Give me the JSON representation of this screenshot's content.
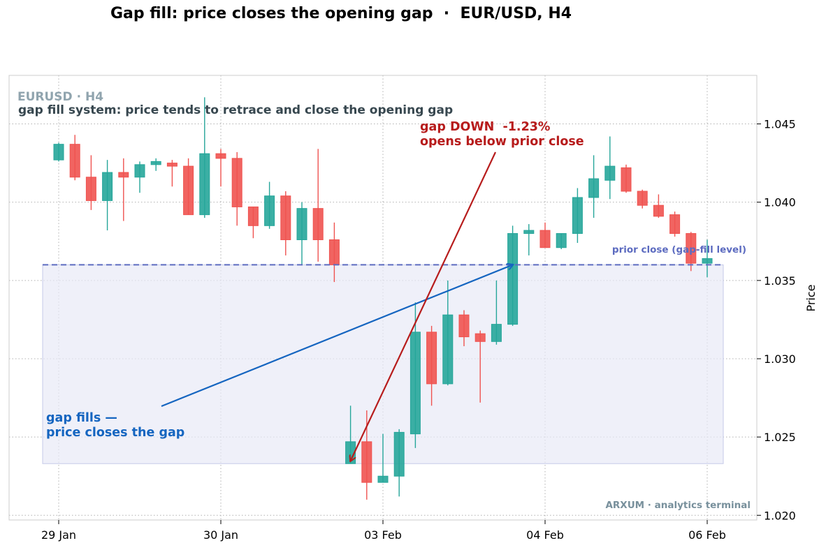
{
  "chart_data": {
    "type": "candlestick",
    "title": "Gap fill: price closes the opening gap  ·  EUR/USD, H4",
    "ylabel": "Price",
    "ylim": [
      1.0197,
      1.0481
    ],
    "yticks": [
      "1.020",
      "1.025",
      "1.030",
      "1.035",
      "1.040",
      "1.045"
    ],
    "ytick_values": [
      1.02,
      1.025,
      1.03,
      1.035,
      1.04,
      1.045
    ],
    "xticks": [
      {
        "label": "29 Jan",
        "index": 0
      },
      {
        "label": "30 Jan",
        "index": 10
      },
      {
        "label": "03 Feb",
        "index": 20
      },
      {
        "label": "04 Feb",
        "index": 30
      },
      {
        "label": "06 Feb",
        "index": 40
      }
    ],
    "grid": true,
    "colors": {
      "up": "#26a69a",
      "down": "#ef5350",
      "fill_level": "#5c6bc0",
      "gap_zone": "#e8eaf6",
      "fill_arrow": "#1565c0",
      "gap_arrow": "#b71c1c"
    },
    "candles": [
      {
        "o": 1.0427,
        "h": 1.0438,
        "l": 1.0426,
        "c": 1.0437
      },
      {
        "o": 1.0437,
        "h": 1.0443,
        "l": 1.0414,
        "c": 1.0416
      },
      {
        "o": 1.0416,
        "h": 1.043,
        "l": 1.0395,
        "c": 1.0401
      },
      {
        "o": 1.0401,
        "h": 1.0427,
        "l": 1.0382,
        "c": 1.0419
      },
      {
        "o": 1.0419,
        "h": 1.0428,
        "l": 1.0388,
        "c": 1.0416
      },
      {
        "o": 1.0416,
        "h": 1.0426,
        "l": 1.0406,
        "c": 1.0424
      },
      {
        "o": 1.0424,
        "h": 1.0428,
        "l": 1.042,
        "c": 1.0426
      },
      {
        "o": 1.0425,
        "h": 1.0427,
        "l": 1.041,
        "c": 1.0423
      },
      {
        "o": 1.0423,
        "h": 1.0428,
        "l": 1.0392,
        "c": 1.0392
      },
      {
        "o": 1.0392,
        "h": 1.0467,
        "l": 1.039,
        "c": 1.0431
      },
      {
        "o": 1.0431,
        "h": 1.0434,
        "l": 1.041,
        "c": 1.0428
      },
      {
        "o": 1.0428,
        "h": 1.0432,
        "l": 1.0385,
        "c": 1.0397
      },
      {
        "o": 1.0397,
        "h": 1.0397,
        "l": 1.0377,
        "c": 1.0385
      },
      {
        "o": 1.0385,
        "h": 1.0413,
        "l": 1.0383,
        "c": 1.0404
      },
      {
        "o": 1.0404,
        "h": 1.0407,
        "l": 1.0366,
        "c": 1.0376
      },
      {
        "o": 1.0376,
        "h": 1.04,
        "l": 1.036,
        "c": 1.0396
      },
      {
        "o": 1.0396,
        "h": 1.0434,
        "l": 1.0362,
        "c": 1.0376
      },
      {
        "o": 1.0376,
        "h": 1.0387,
        "l": 1.0349,
        "c": 1.036
      },
      {
        "o": 1.0233,
        "h": 1.027,
        "l": 1.0233,
        "c": 1.0247
      },
      {
        "o": 1.0247,
        "h": 1.0267,
        "l": 1.021,
        "c": 1.0221
      },
      {
        "o": 1.0221,
        "h": 1.0252,
        "l": 1.0221,
        "c": 1.0225
      },
      {
        "o": 1.0225,
        "h": 1.0255,
        "l": 1.0212,
        "c": 1.0253
      },
      {
        "o": 1.0252,
        "h": 1.0336,
        "l": 1.0243,
        "c": 1.0317
      },
      {
        "o": 1.0317,
        "h": 1.0321,
        "l": 1.027,
        "c": 1.0284
      },
      {
        "o": 1.0284,
        "h": 1.035,
        "l": 1.0283,
        "c": 1.0328
      },
      {
        "o": 1.0328,
        "h": 1.0331,
        "l": 1.0308,
        "c": 1.0314
      },
      {
        "o": 1.0316,
        "h": 1.0318,
        "l": 1.0272,
        "c": 1.0311
      },
      {
        "o": 1.0311,
        "h": 1.035,
        "l": 1.0309,
        "c": 1.0322
      },
      {
        "o": 1.0322,
        "h": 1.0385,
        "l": 1.0321,
        "c": 1.038
      },
      {
        "o": 1.038,
        "h": 1.0386,
        "l": 1.0366,
        "c": 1.0382
      },
      {
        "o": 1.0382,
        "h": 1.0387,
        "l": 1.0371,
        "c": 1.0371
      },
      {
        "o": 1.0371,
        "h": 1.038,
        "l": 1.037,
        "c": 1.038
      },
      {
        "o": 1.038,
        "h": 1.0409,
        "l": 1.0374,
        "c": 1.0403
      },
      {
        "o": 1.0403,
        "h": 1.043,
        "l": 1.039,
        "c": 1.0415
      },
      {
        "o": 1.0414,
        "h": 1.0442,
        "l": 1.0402,
        "c": 1.0423
      },
      {
        "o": 1.0422,
        "h": 1.0424,
        "l": 1.0406,
        "c": 1.0407
      },
      {
        "o": 1.0407,
        "h": 1.0408,
        "l": 1.0396,
        "c": 1.0398
      },
      {
        "o": 1.0398,
        "h": 1.0405,
        "l": 1.039,
        "c": 1.0391
      },
      {
        "o": 1.0392,
        "h": 1.0394,
        "l": 1.0378,
        "c": 1.038
      },
      {
        "o": 1.038,
        "h": 1.0381,
        "l": 1.0356,
        "c": 1.0361
      },
      {
        "o": 1.0361,
        "h": 1.0376,
        "l": 1.0352,
        "c": 1.0364
      }
    ],
    "fill_level": {
      "value": 1.036,
      "label": "prior close (gap-fill level)"
    },
    "gap_zone": {
      "from": 1.0233,
      "to": 1.036
    },
    "annotations": {
      "symbol": "EURUSD · H4",
      "subtitle": "gap fill system: price tends to retrace and close the opening gap",
      "gap_down_line1": "gap DOWN  -1.23%",
      "gap_down_line2": "opens below prior close",
      "gap_fills_line1": "gap fills —",
      "gap_fills_line2": "price closes the gap",
      "watermark": "ARXUM · analytics terminal"
    }
  }
}
